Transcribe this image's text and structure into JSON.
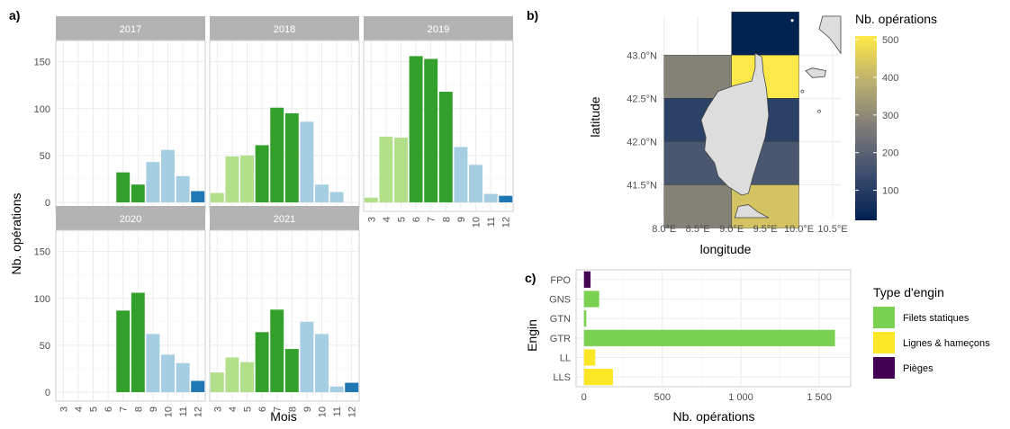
{
  "panel_labels": {
    "a": "a)",
    "b": "b)",
    "c": "c)"
  },
  "colors": {
    "light_green": "#b2df8a",
    "dark_green": "#33a02c",
    "light_blue": "#a6cee3",
    "dark_blue": "#1f78b4",
    "strip_bg": "#b3b3b3",
    "grid": "#ebebeb",
    "fixed_nets": "#7ad151",
    "lines_hooks": "#fde725",
    "traps": "#440154",
    "corsica_land": "#dddddd"
  },
  "chart_data": [
    {
      "type": "bar",
      "id": "monthly_facets",
      "xlabel": "Mois",
      "ylabel": "Nb. opérations",
      "ylim": [
        0,
        165
      ],
      "yticks": [
        0,
        50,
        100,
        150
      ],
      "categories": [
        "3",
        "4",
        "5",
        "6",
        "7",
        "8",
        "9",
        "10",
        "11",
        "12"
      ],
      "facets": [
        {
          "label": "2017",
          "values": [
            0,
            0,
            0,
            0,
            32,
            19,
            43,
            56,
            28,
            12
          ]
        },
        {
          "label": "2018",
          "values": [
            10,
            49,
            50,
            61,
            101,
            95,
            86,
            19,
            11,
            0
          ]
        },
        {
          "label": "2019",
          "values": [
            5,
            70,
            69,
            156,
            153,
            118,
            59,
            40,
            9,
            7
          ]
        },
        {
          "label": "2020",
          "values": [
            0,
            0,
            0,
            0,
            87,
            106,
            62,
            40,
            31,
            12
          ]
        },
        {
          "label": "2021",
          "values": [
            21,
            37,
            32,
            64,
            88,
            46,
            75,
            62,
            6,
            10
          ]
        }
      ],
      "month_color_group": {
        "3": "light_green",
        "4": "light_green",
        "5": "light_green",
        "6": "dark_green",
        "7": "dark_green",
        "8": "dark_green",
        "9": "light_blue",
        "10": "light_blue",
        "11": "light_blue",
        "12": "dark_blue"
      }
    },
    {
      "type": "heatmap",
      "id": "corsica_map",
      "xlabel": "longitude",
      "ylabel": "latitude",
      "x_ticks": [
        "8.0°E",
        "8.5°E",
        "9.0°E",
        "9.5°E",
        "10.0°E",
        "10.5°E"
      ],
      "y_ticks": [
        "41.5°N",
        "42.0°N",
        "42.5°N",
        "43.0°N"
      ],
      "legend_title": "Nb. opérations",
      "legend_ticks": [
        100,
        200,
        300,
        400,
        500
      ],
      "value_range": [
        20,
        510
      ],
      "cells": [
        {
          "lon": [
            9.0,
            10.0
          ],
          "lat": [
            43.0,
            43.5
          ],
          "value": 25
        },
        {
          "lon": [
            8.0,
            9.0
          ],
          "lat": [
            42.5,
            43.0
          ],
          "value": 280
        },
        {
          "lon": [
            9.0,
            10.0
          ],
          "lat": [
            42.5,
            43.0
          ],
          "value": 505
        },
        {
          "lon": [
            8.0,
            10.0
          ],
          "lat": [
            42.0,
            42.5
          ],
          "value": 110
        },
        {
          "lon": [
            8.0,
            10.0
          ],
          "lat": [
            41.5,
            42.0
          ],
          "value": 170
        },
        {
          "lon": [
            8.0,
            9.0
          ],
          "lat": [
            41.0,
            41.5
          ],
          "value": 280
        },
        {
          "lon": [
            9.0,
            10.0
          ],
          "lat": [
            41.0,
            41.5
          ],
          "value": 430
        }
      ]
    },
    {
      "type": "bar",
      "id": "gear_type",
      "orientation": "horizontal",
      "xlabel": "Nb. opérations",
      "ylabel": "Engin",
      "xlim": [
        -50,
        1700
      ],
      "xticks": [
        0,
        500,
        1000,
        1500
      ],
      "xtick_labels": [
        "0",
        "500",
        "1 000",
        "1 500"
      ],
      "categories": [
        "FPO",
        "GNS",
        "GTN",
        "GTR",
        "LL",
        "LLS"
      ],
      "values": [
        42,
        97,
        15,
        1600,
        72,
        185
      ],
      "groups": [
        "traps",
        "fixed_nets",
        "fixed_nets",
        "fixed_nets",
        "lines_hooks",
        "lines_hooks"
      ],
      "legend_title": "Type d'engin",
      "legend": [
        {
          "key": "fixed_nets",
          "label": "Filets statiques"
        },
        {
          "key": "lines_hooks",
          "label": "Lignes & hameçons"
        },
        {
          "key": "traps",
          "label": "Pièges"
        }
      ]
    }
  ]
}
